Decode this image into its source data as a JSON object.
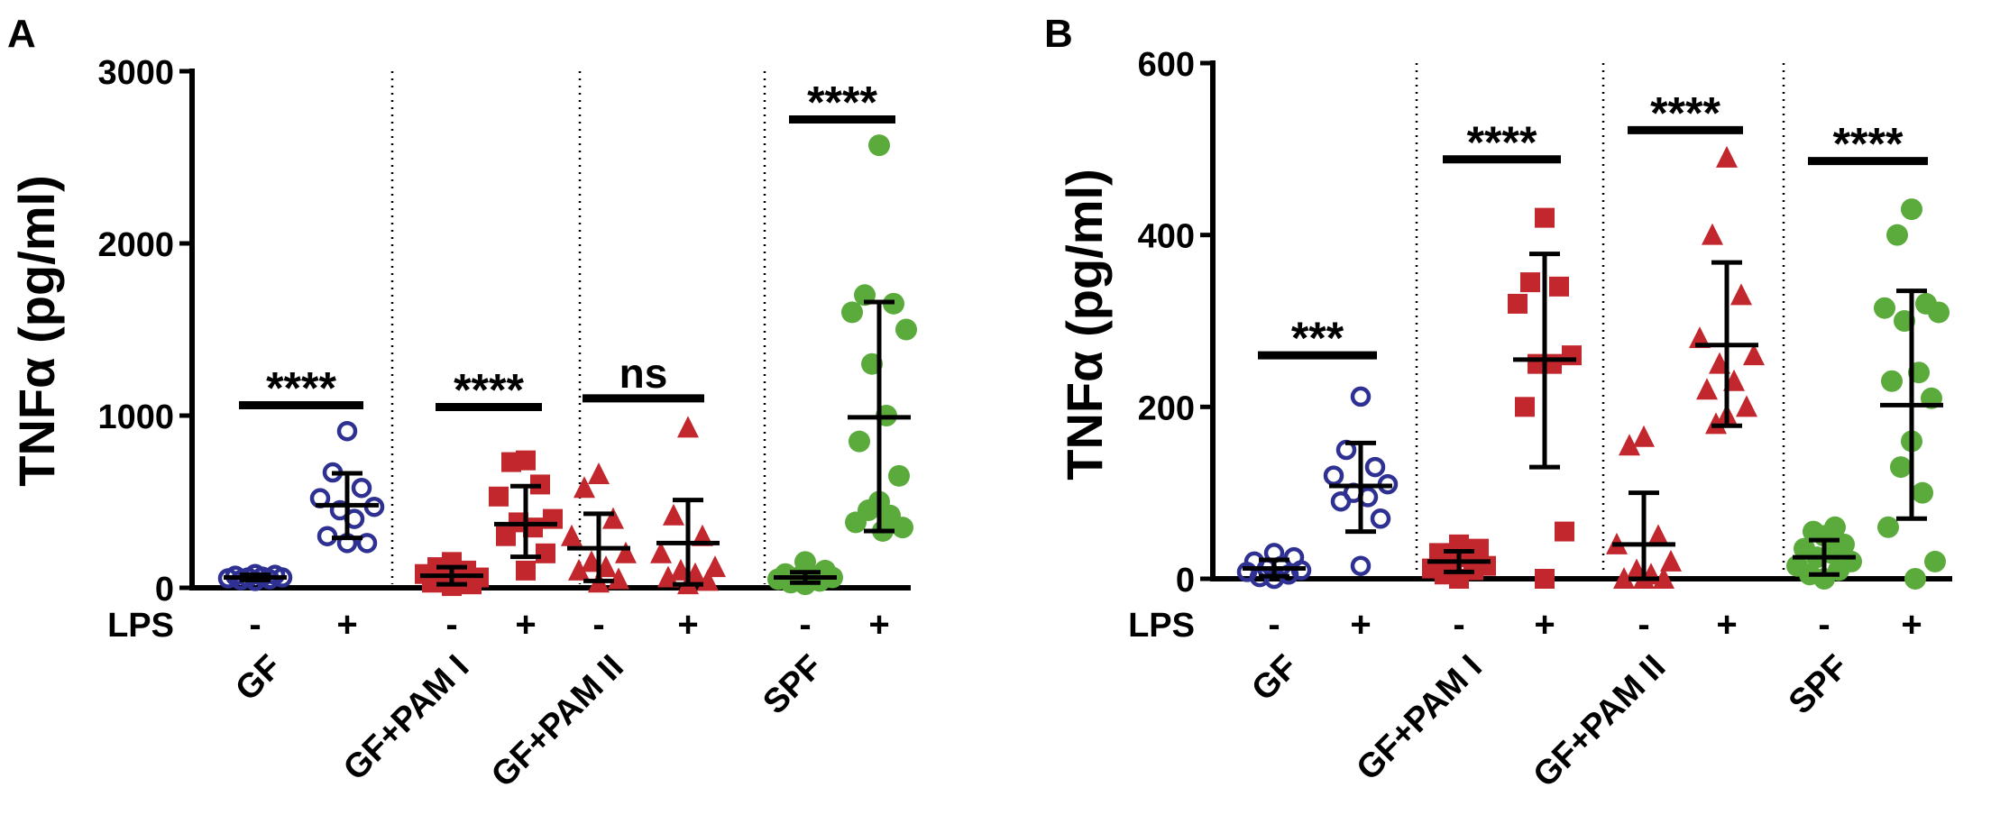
{
  "chart_data": [
    {
      "panel": "A",
      "type": "scatter",
      "ylabel": "TNFα  (pg/ml)",
      "ylim": [
        0,
        3000
      ],
      "yticks": [
        "0",
        "1000",
        "2000",
        "3000"
      ],
      "lps_label": "LPS",
      "lps_minus": "-",
      "lps_plus": "+",
      "grid": false,
      "groups": [
        {
          "label": "GF",
          "color": "#2e3192",
          "marker": "open-circle",
          "minus": {
            "values": [
              40,
              45,
              50,
              55,
              60,
              60,
              65,
              70,
              75,
              80
            ],
            "mean": 60,
            "sd_low": 45,
            "sd_high": 75
          },
          "plus": {
            "values": [
              910,
              670,
              580,
              520,
              470,
              450,
              400,
              300,
              260,
              260
            ],
            "mean": 480,
            "sd_low": 290,
            "sd_high": 665
          },
          "significance": {
            "text": "****",
            "y": 1060
          }
        },
        {
          "label": "GF+PAM I",
          "color": "#c1272d",
          "marker": "filled-square",
          "minus": {
            "values": [
              150,
              120,
              100,
              80,
              60,
              50,
              40,
              30,
              20,
              10
            ],
            "mean": 70,
            "sd_low": 20,
            "sd_high": 120
          },
          "plus": {
            "values": [
              740,
              730,
              600,
              530,
              400,
              380,
              350,
              300,
              200,
              100
            ],
            "mean": 370,
            "sd_low": 180,
            "sd_high": 590
          },
          "significance": {
            "text": "****",
            "y": 1050
          }
        },
        {
          "label": "GF+PAM II",
          "color": "#c1272d",
          "marker": "filled-triangle",
          "minus": {
            "values": [
              660,
              580,
              400,
              300,
              200,
              150,
              120,
              100,
              50,
              30
            ],
            "mean": 230,
            "sd_low": 40,
            "sd_high": 430
          },
          "plus": {
            "values": [
              930,
              420,
              300,
              200,
              120,
              100,
              80,
              60,
              40,
              20
            ],
            "mean": 260,
            "sd_low": 20,
            "sd_high": 510
          },
          "significance": {
            "text": "ns",
            "y": 1100
          }
        },
        {
          "label": "SPF",
          "color": "#5aab3c",
          "marker": "filled-circle",
          "minus": {
            "values": [
              20,
              30,
              40,
              50,
              60,
              60,
              70,
              80,
              100,
              150
            ],
            "mean": 60,
            "sd_low": 30,
            "sd_high": 90
          },
          "plus": {
            "values": [
              2570,
              1700,
              1650,
              1600,
              1500,
              1300,
              1000,
              850,
              650,
              500,
              450,
              420,
              380,
              350,
              330
            ],
            "mean": 990,
            "sd_low": 330,
            "sd_high": 1660
          },
          "significance": {
            "text": "****",
            "y": 2720
          }
        }
      ]
    },
    {
      "panel": "B",
      "type": "scatter",
      "ylabel": "TNFα  (pg/ml)",
      "ylim": [
        0,
        600
      ],
      "yticks": [
        "0",
        "200",
        "400",
        "600"
      ],
      "lps_label": "LPS",
      "lps_minus": "-",
      "lps_plus": "+",
      "grid": false,
      "groups": [
        {
          "label": "GF",
          "color": "#2e3192",
          "marker": "open-circle",
          "minus": {
            "values": [
              0,
              2,
              5,
              8,
              10,
              12,
              15,
              20,
              25,
              30
            ],
            "mean": 12,
            "sd_low": 3,
            "sd_high": 22
          },
          "plus": {
            "values": [
              212,
              150,
              130,
              120,
              110,
              100,
              95,
              90,
              70,
              15
            ],
            "mean": 108,
            "sd_low": 55,
            "sd_high": 158
          },
          "significance": {
            "text": "***",
            "y": 260
          }
        },
        {
          "label": "GF+PAM I",
          "color": "#c1272d",
          "marker": "filled-square",
          "minus": {
            "values": [
              0,
              5,
              10,
              12,
              15,
              20,
              25,
              30,
              35,
              40
            ],
            "mean": 20,
            "sd_low": 8,
            "sd_high": 32
          },
          "plus": {
            "values": [
              420,
              345,
              340,
              320,
              260,
              250,
              250,
              200,
              55,
              0
            ],
            "mean": 255,
            "sd_low": 130,
            "sd_high": 378
          },
          "significance": {
            "text": "****",
            "y": 488
          }
        },
        {
          "label": "GF+PAM II",
          "color": "#c1272d",
          "marker": "filled-triangle",
          "minus": {
            "values": [
              165,
              155,
              50,
              40,
              20,
              10,
              5,
              0,
              0,
              0
            ],
            "mean": 40,
            "sd_low": 0,
            "sd_high": 100
          },
          "plus": {
            "values": [
              490,
              400,
              330,
              280,
              260,
              250,
              230,
              220,
              200,
              190,
              180
            ],
            "mean": 272,
            "sd_low": 178,
            "sd_high": 368
          },
          "significance": {
            "text": "****",
            "y": 522
          }
        },
        {
          "label": "SPF",
          "color": "#5aab3c",
          "marker": "filled-circle",
          "minus": {
            "values": [
              0,
              5,
              10,
              15,
              20,
              25,
              30,
              35,
              40,
              50,
              55,
              60
            ],
            "mean": 25,
            "sd_low": 5,
            "sd_high": 45
          },
          "plus": {
            "values": [
              430,
              400,
              320,
              315,
              310,
              300,
              240,
              230,
              210,
              160,
              130,
              100,
              60,
              20,
              0
            ],
            "mean": 202,
            "sd_low": 70,
            "sd_high": 335
          },
          "significance": {
            "text": "****",
            "y": 486
          }
        }
      ]
    }
  ]
}
